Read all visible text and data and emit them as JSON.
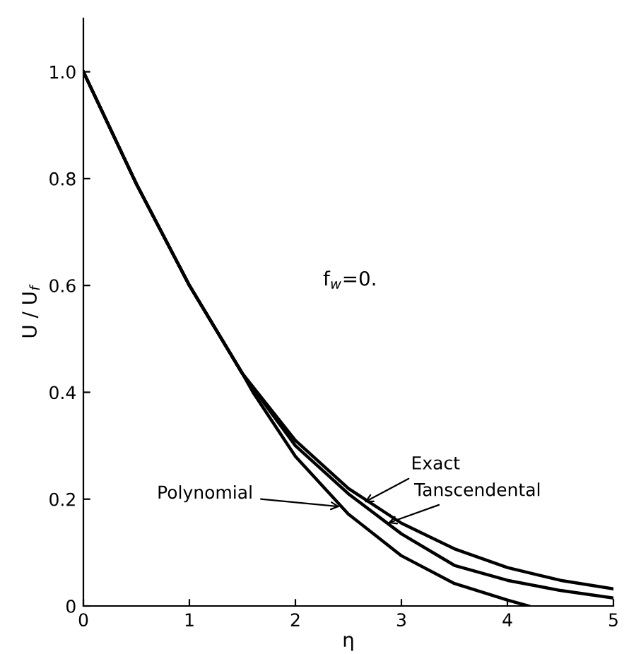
{
  "chart_data": {
    "type": "line",
    "xlabel": "η",
    "ylabel": "U / U$_{f}$",
    "xlim": [
      0,
      5
    ],
    "ylim": [
      0,
      1.1
    ],
    "xticks": [
      0,
      1,
      2,
      3,
      4,
      5
    ],
    "yticks": [
      {
        "value": 0,
        "label": "0"
      },
      0.2,
      0.4,
      0.6,
      0.8,
      {
        "value": 1.0,
        "label": "1.0"
      }
    ],
    "grid": false,
    "legend": false,
    "marker": "none",
    "line_style": "solid",
    "series": [
      {
        "color": "#000000",
        "x": [
          0,
          0.5,
          1,
          1.5,
          2,
          2.5,
          3,
          3.5,
          4,
          4.5,
          5
        ],
        "values": [
          1.0,
          0.79,
          0.6,
          0.435,
          0.31,
          0.22,
          0.155,
          0.107,
          0.072,
          0.048,
          0.032
        ]
      },
      {
        "color": "#000000",
        "x": [
          0,
          0.5,
          1,
          1.5,
          2,
          2.5,
          3,
          3.5,
          4,
          4.5,
          5
        ],
        "values": [
          1.0,
          0.79,
          0.6,
          0.435,
          0.3,
          0.21,
          0.135,
          0.076,
          0.048,
          0.029,
          0.015
        ]
      },
      {
        "color": "#000000",
        "x": [
          0,
          0.5,
          1,
          1.5,
          1.6,
          2,
          2.5,
          3,
          3.5,
          4,
          4.2
        ],
        "values": [
          1.0,
          0.79,
          0.6,
          0.435,
          0.4,
          0.28,
          0.172,
          0.094,
          0.042,
          0.011,
          0
        ]
      }
    ],
    "annotations": [
      {
        "text": "Exact",
        "x": 2.65,
        "y": 0.194
      },
      {
        "text": "Tanscendental",
        "x": 2.87,
        "y": 0.155
      },
      {
        "text": "Polynomial",
        "x": 2.42,
        "y": 0.186
      },
      "f$_{w}$=0."
    ]
  }
}
